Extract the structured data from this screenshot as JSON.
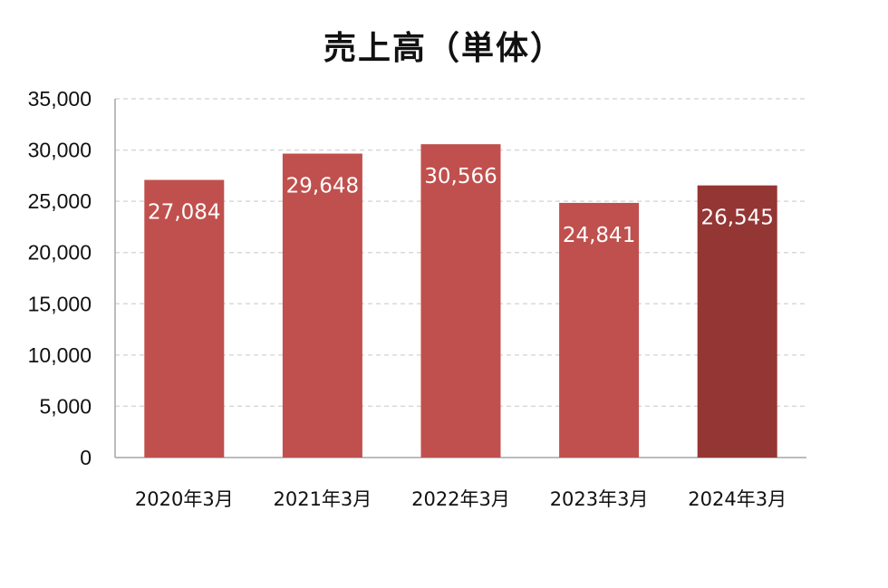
{
  "chart_data": {
    "type": "bar",
    "title": "売上高（単体）",
    "categories": [
      "2020年3月",
      "2021年3月",
      "2022年3月",
      "2023年3月",
      "2024年3月"
    ],
    "values": [
      27084,
      29648,
      30566,
      24841,
      26545
    ],
    "data_labels": [
      "27,084",
      "29,648",
      "30,566",
      "24,841",
      "26,545"
    ],
    "yticks": [
      "0",
      "5,000",
      "10,000",
      "15,000",
      "20,000",
      "25,000",
      "30,000",
      "35,000"
    ],
    "ylim": [
      0,
      35000
    ],
    "grid": true,
    "legend": "none",
    "colors": {
      "bar": "#C0504D",
      "highlight_bar": "#943634",
      "grid": "#D9D9D9",
      "axis": "#A6A6A6"
    },
    "highlight_index": 4
  }
}
